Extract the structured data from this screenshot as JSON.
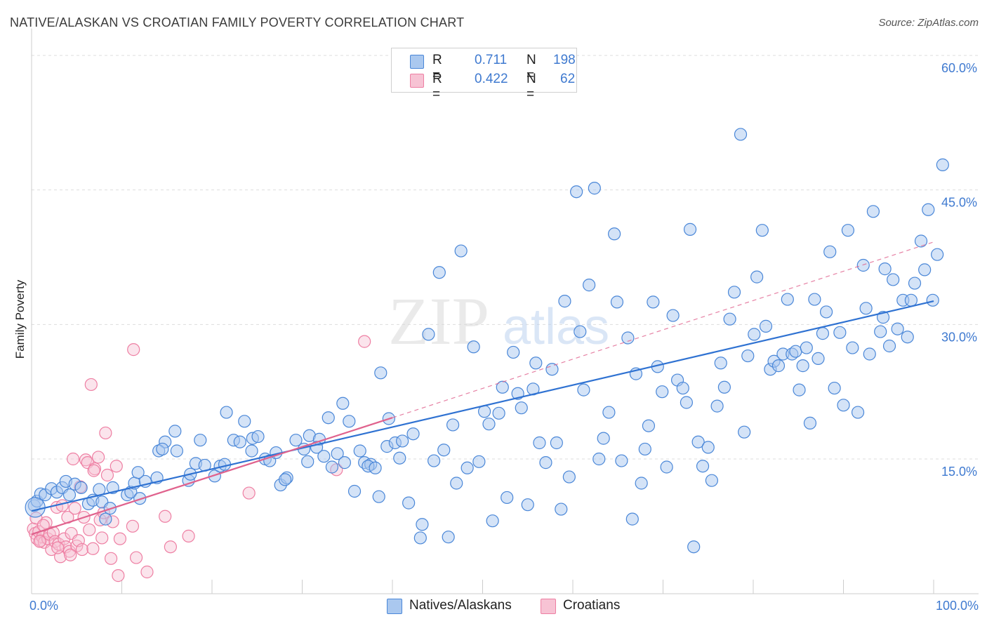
{
  "title": "NATIVE/ALASKAN VS CROATIAN FAMILY POVERTY CORRELATION CHART",
  "source": "Source: ZipAtlas.com",
  "watermark": {
    "zip": "ZIP",
    "atlas": "atlas"
  },
  "colors": {
    "blue": "#4a87d8",
    "blue_fill": "#aac8ef",
    "blue_line": "#2f72d2",
    "pink": "#ee7fa3",
    "pink_fill": "#f7c3d4",
    "pink_line": "#e0628d",
    "tick": "#3f7ad0",
    "grid": "#dddddd"
  },
  "legend": {
    "rows": [
      {
        "r_label": "R =",
        "r_value": "0.711",
        "n_label": "N =",
        "n_value": "198",
        "series": "Natives/Alaskans"
      },
      {
        "r_label": "R =",
        "r_value": "0.422",
        "n_label": "N =",
        "n_value": "62",
        "series": "Croatians"
      }
    ]
  },
  "chart_data": {
    "type": "scatter",
    "title": "NATIVE/ALASKAN VS CROATIAN FAMILY POVERTY CORRELATION CHART",
    "xlabel": "",
    "ylabel": "Family Poverty",
    "xlim": [
      0,
      100
    ],
    "ylim": [
      0,
      63
    ],
    "x_tick_labels": [
      "0.0%",
      "100.0%"
    ],
    "y_ticks": [
      15,
      30,
      45,
      60
    ],
    "y_tick_labels": [
      "15.0%",
      "30.0%",
      "45.0%",
      "60.0%"
    ],
    "legend_position": "top-center",
    "series": [
      {
        "name": "Natives/Alaskans",
        "R": 0.711,
        "N": 198,
        "trend": {
          "x": [
            0,
            100
          ],
          "y": [
            9.2,
            32.6
          ],
          "style": "solid"
        },
        "points": [
          [
            0.3,
            9.8
          ],
          [
            0.6,
            10.3
          ],
          [
            1.0,
            11.1
          ],
          [
            1.5,
            11.0
          ],
          [
            2.2,
            11.7
          ],
          [
            2.8,
            11.3
          ],
          [
            3.4,
            11.8
          ],
          [
            3.8,
            12.5
          ],
          [
            4.2,
            11.0
          ],
          [
            4.8,
            12.2
          ],
          [
            5.5,
            11.8
          ],
          [
            6.3,
            10.0
          ],
          [
            6.8,
            10.4
          ],
          [
            7.5,
            11.6
          ],
          [
            7.8,
            10.2
          ],
          [
            8.2,
            8.3
          ],
          [
            8.7,
            9.5
          ],
          [
            9.0,
            11.8
          ],
          [
            10.6,
            11.0
          ],
          [
            11.0,
            11.3
          ],
          [
            11.4,
            12.3
          ],
          [
            12.0,
            10.6
          ],
          [
            12.6,
            12.5
          ],
          [
            11.8,
            13.5
          ],
          [
            13.9,
            12.9
          ],
          [
            14.8,
            16.9
          ],
          [
            14.1,
            15.9
          ],
          [
            14.5,
            16.1
          ],
          [
            15.9,
            18.1
          ],
          [
            16.1,
            15.9
          ],
          [
            17.4,
            12.6
          ],
          [
            18.2,
            14.5
          ],
          [
            17.6,
            13.3
          ],
          [
            18.7,
            17.1
          ],
          [
            19.2,
            14.3
          ],
          [
            20.3,
            13.1
          ],
          [
            20.9,
            14.2
          ],
          [
            21.6,
            20.2
          ],
          [
            21.4,
            14.4
          ],
          [
            22.4,
            17.1
          ],
          [
            23.1,
            16.9
          ],
          [
            23.6,
            19.2
          ],
          [
            24.5,
            17.3
          ],
          [
            25.1,
            17.5
          ],
          [
            24.4,
            15.9
          ],
          [
            25.9,
            15.0
          ],
          [
            26.4,
            14.8
          ],
          [
            27.1,
            15.7
          ],
          [
            27.6,
            12.1
          ],
          [
            28.3,
            12.9
          ],
          [
            28.1,
            12.7
          ],
          [
            29.3,
            17.1
          ],
          [
            30.2,
            16.1
          ],
          [
            30.8,
            17.6
          ],
          [
            30.6,
            14.7
          ],
          [
            31.9,
            17.2
          ],
          [
            31.6,
            16.3
          ],
          [
            32.4,
            15.3
          ],
          [
            32.9,
            19.6
          ],
          [
            33.3,
            14.1
          ],
          [
            33.9,
            15.6
          ],
          [
            34.7,
            14.6
          ],
          [
            34.5,
            21.2
          ],
          [
            35.2,
            19.2
          ],
          [
            35.8,
            11.4
          ],
          [
            36.4,
            15.9
          ],
          [
            36.9,
            14.6
          ],
          [
            37.6,
            14.4
          ],
          [
            37.3,
            14.2
          ],
          [
            38.1,
            14.0
          ],
          [
            38.5,
            10.8
          ],
          [
            38.7,
            24.6
          ],
          [
            39.6,
            19.5
          ],
          [
            39.4,
            16.4
          ],
          [
            40.3,
            16.8
          ],
          [
            40.8,
            15.1
          ],
          [
            41.1,
            17.0
          ],
          [
            41.8,
            10.1
          ],
          [
            42.3,
            17.8
          ],
          [
            43.1,
            6.2
          ],
          [
            43.3,
            7.7
          ],
          [
            44.0,
            28.9
          ],
          [
            44.6,
            14.8
          ],
          [
            45.2,
            35.8
          ],
          [
            45.7,
            16.0
          ],
          [
            46.2,
            6.3
          ],
          [
            46.7,
            18.8
          ],
          [
            47.1,
            12.3
          ],
          [
            47.6,
            38.2
          ],
          [
            48.3,
            14.0
          ],
          [
            49.0,
            27.5
          ],
          [
            49.6,
            14.7
          ],
          [
            50.2,
            20.3
          ],
          [
            50.7,
            18.9
          ],
          [
            51.1,
            8.1
          ],
          [
            51.8,
            20.1
          ],
          [
            52.2,
            23.0
          ],
          [
            52.7,
            10.7
          ],
          [
            53.4,
            26.9
          ],
          [
            53.9,
            22.3
          ],
          [
            54.3,
            20.7
          ],
          [
            55.0,
            9.9
          ],
          [
            55.6,
            22.8
          ],
          [
            55.9,
            25.7
          ],
          [
            56.3,
            16.8
          ],
          [
            57.0,
            14.6
          ],
          [
            57.7,
            25.0
          ],
          [
            58.2,
            16.8
          ],
          [
            58.7,
            9.4
          ],
          [
            59.1,
            32.6
          ],
          [
            59.6,
            13.0
          ],
          [
            60.4,
            44.8
          ],
          [
            60.8,
            29.2
          ],
          [
            61.2,
            22.7
          ],
          [
            61.8,
            34.4
          ],
          [
            62.4,
            45.2
          ],
          [
            62.9,
            15.0
          ],
          [
            63.4,
            17.3
          ],
          [
            64.0,
            20.2
          ],
          [
            64.6,
            40.1
          ],
          [
            64.9,
            32.5
          ],
          [
            65.4,
            14.8
          ],
          [
            66.1,
            28.5
          ],
          [
            66.6,
            8.3
          ],
          [
            67.0,
            24.5
          ],
          [
            67.6,
            12.3
          ],
          [
            68.0,
            16.1
          ],
          [
            68.4,
            18.7
          ],
          [
            68.9,
            32.5
          ],
          [
            69.4,
            25.3
          ],
          [
            69.9,
            22.5
          ],
          [
            70.4,
            14.1
          ],
          [
            71.1,
            31.0
          ],
          [
            71.6,
            23.8
          ],
          [
            72.2,
            22.9
          ],
          [
            72.6,
            21.3
          ],
          [
            73.0,
            40.6
          ],
          [
            73.4,
            5.2
          ],
          [
            73.9,
            16.9
          ],
          [
            74.4,
            14.2
          ],
          [
            75.0,
            16.3
          ],
          [
            75.4,
            12.6
          ],
          [
            76.0,
            20.9
          ],
          [
            76.4,
            25.7
          ],
          [
            76.8,
            23.0
          ],
          [
            77.4,
            30.6
          ],
          [
            77.9,
            33.6
          ],
          [
            78.6,
            51.2
          ],
          [
            79.0,
            18.0
          ],
          [
            79.4,
            26.5
          ],
          [
            80.1,
            28.9
          ],
          [
            80.4,
            35.3
          ],
          [
            81.0,
            40.5
          ],
          [
            81.4,
            29.8
          ],
          [
            81.9,
            25.0
          ],
          [
            82.3,
            25.9
          ],
          [
            82.8,
            25.4
          ],
          [
            83.3,
            26.7
          ],
          [
            83.8,
            32.8
          ],
          [
            84.3,
            26.7
          ],
          [
            84.7,
            27.0
          ],
          [
            85.1,
            22.7
          ],
          [
            85.5,
            25.4
          ],
          [
            85.9,
            27.4
          ],
          [
            86.3,
            19.0
          ],
          [
            86.8,
            32.8
          ],
          [
            87.2,
            26.2
          ],
          [
            87.7,
            29.0
          ],
          [
            88.1,
            31.4
          ],
          [
            88.5,
            38.1
          ],
          [
            89.0,
            22.9
          ],
          [
            89.6,
            29.1
          ],
          [
            90.0,
            21.0
          ],
          [
            90.5,
            40.5
          ],
          [
            91.0,
            27.4
          ],
          [
            91.6,
            20.2
          ],
          [
            92.2,
            36.6
          ],
          [
            92.5,
            31.8
          ],
          [
            92.9,
            26.7
          ],
          [
            93.3,
            42.6
          ],
          [
            94.1,
            29.2
          ],
          [
            94.4,
            30.8
          ],
          [
            94.6,
            36.2
          ],
          [
            95.1,
            27.6
          ],
          [
            95.5,
            35.0
          ],
          [
            96.0,
            29.5
          ],
          [
            96.6,
            32.7
          ],
          [
            97.1,
            28.6
          ],
          [
            97.5,
            32.7
          ],
          [
            97.9,
            34.6
          ],
          [
            98.6,
            39.3
          ],
          [
            99.0,
            36.1
          ],
          [
            99.4,
            42.8
          ],
          [
            99.9,
            32.7
          ],
          [
            100.4,
            37.8
          ],
          [
            101.0,
            47.8
          ]
        ]
      },
      {
        "name": "Croatians",
        "R": 0.422,
        "N": 62,
        "trend": {
          "x": [
            0,
            40
          ],
          "y": [
            6.6,
            19.6
          ],
          "style": "solid",
          "extended": {
            "x": [
              40,
              100
            ],
            "y": [
              19.6,
              39.2
            ],
            "style": "dashed"
          }
        },
        "points": [
          [
            0.2,
            7.2
          ],
          [
            0.4,
            6.7
          ],
          [
            0.6,
            6.1
          ],
          [
            0.8,
            6.9
          ],
          [
            1.0,
            5.9
          ],
          [
            1.2,
            6.3
          ],
          [
            1.4,
            5.7
          ],
          [
            1.6,
            7.9
          ],
          [
            1.8,
            6.1
          ],
          [
            2.0,
            6.6
          ],
          [
            2.2,
            4.9
          ],
          [
            2.4,
            6.8
          ],
          [
            2.6,
            5.8
          ],
          [
            2.8,
            9.6
          ],
          [
            3.0,
            5.5
          ],
          [
            3.2,
            4.1
          ],
          [
            3.4,
            9.8
          ],
          [
            3.6,
            6.1
          ],
          [
            3.8,
            5.2
          ],
          [
            4.0,
            8.5
          ],
          [
            4.2,
            4.7
          ],
          [
            4.4,
            6.7
          ],
          [
            4.6,
            15.0
          ],
          [
            4.8,
            9.5
          ],
          [
            5.0,
            5.3
          ],
          [
            5.2,
            5.9
          ],
          [
            5.4,
            11.9
          ],
          [
            5.6,
            4.9
          ],
          [
            5.8,
            8.5
          ],
          [
            6.0,
            14.9
          ],
          [
            6.2,
            14.6
          ],
          [
            6.4,
            7.1
          ],
          [
            6.6,
            23.3
          ],
          [
            6.8,
            5.0
          ],
          [
            7.0,
            13.9
          ],
          [
            7.4,
            15.2
          ],
          [
            7.6,
            8.2
          ],
          [
            7.8,
            6.2
          ],
          [
            8.0,
            9.0
          ],
          [
            8.2,
            17.9
          ],
          [
            8.4,
            13.2
          ],
          [
            8.8,
            3.9
          ],
          [
            9.0,
            8.0
          ],
          [
            9.4,
            14.2
          ],
          [
            9.6,
            2.0
          ],
          [
            9.8,
            6.1
          ],
          [
            11.3,
            27.2
          ],
          [
            11.6,
            4.0
          ],
          [
            11.2,
            7.5
          ],
          [
            12.8,
            2.4
          ],
          [
            14.8,
            8.6
          ],
          [
            15.4,
            5.2
          ],
          [
            17.4,
            6.4
          ],
          [
            24.1,
            11.2
          ],
          [
            33.8,
            13.8
          ],
          [
            36.9,
            28.1
          ],
          [
            0.9,
            5.8
          ],
          [
            2.9,
            5.1
          ],
          [
            4.3,
            4.3
          ],
          [
            6.9,
            13.7
          ],
          [
            0.5,
            8.4
          ],
          [
            1.3,
            7.6
          ]
        ]
      }
    ]
  }
}
